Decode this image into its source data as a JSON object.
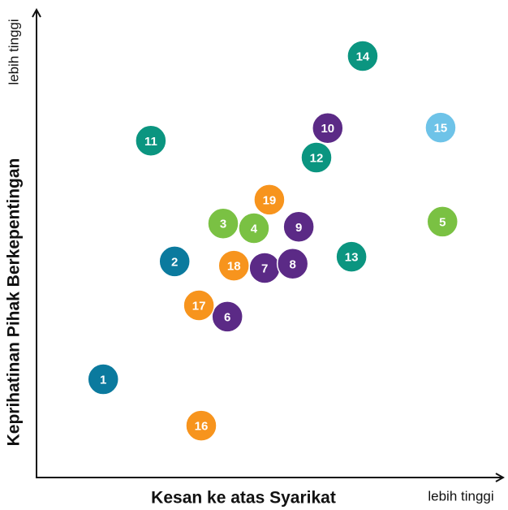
{
  "chart_data": {
    "type": "scatter",
    "x_label": "Kesan ke atas Syarikat",
    "y_label": "Keprihatinan Pihak Berkepentingan",
    "x_end_label": "lebih tinggi",
    "y_end_label": "lebih tinggi",
    "xlim": [
      0,
      100
    ],
    "ylim": [
      0,
      100
    ],
    "labels": [
      "1",
      "2",
      "3",
      "4",
      "5",
      "6",
      "7",
      "8",
      "9",
      "10",
      "11",
      "12",
      "13",
      "14",
      "15",
      "16",
      "17",
      "18",
      "19"
    ],
    "x": [
      14.3,
      29.6,
      40.0,
      46.6,
      87.0,
      40.9,
      48.9,
      54.9,
      56.2,
      62.4,
      24.5,
      60.0,
      67.5,
      69.9,
      86.6,
      35.3,
      34.8,
      42.3,
      49.9
    ],
    "y": [
      21.0,
      46.2,
      54.3,
      53.3,
      54.7,
      34.4,
      44.8,
      45.7,
      53.6,
      74.7,
      72.0,
      68.4,
      47.2,
      90.1,
      74.8,
      11.1,
      36.8,
      45.3,
      59.4
    ],
    "colors": [
      "#0b7a9e",
      "#0b7a9e",
      "#7ac143",
      "#7ac143",
      "#7ac143",
      "#5b2a86",
      "#5b2a86",
      "#5b2a86",
      "#5b2a86",
      "#5b2a86",
      "#0b9580",
      "#0b9580",
      "#0b9580",
      "#0b9580",
      "#6ec3e8",
      "#f7941d",
      "#f7941d",
      "#f7941d",
      "#f7941d"
    ]
  }
}
